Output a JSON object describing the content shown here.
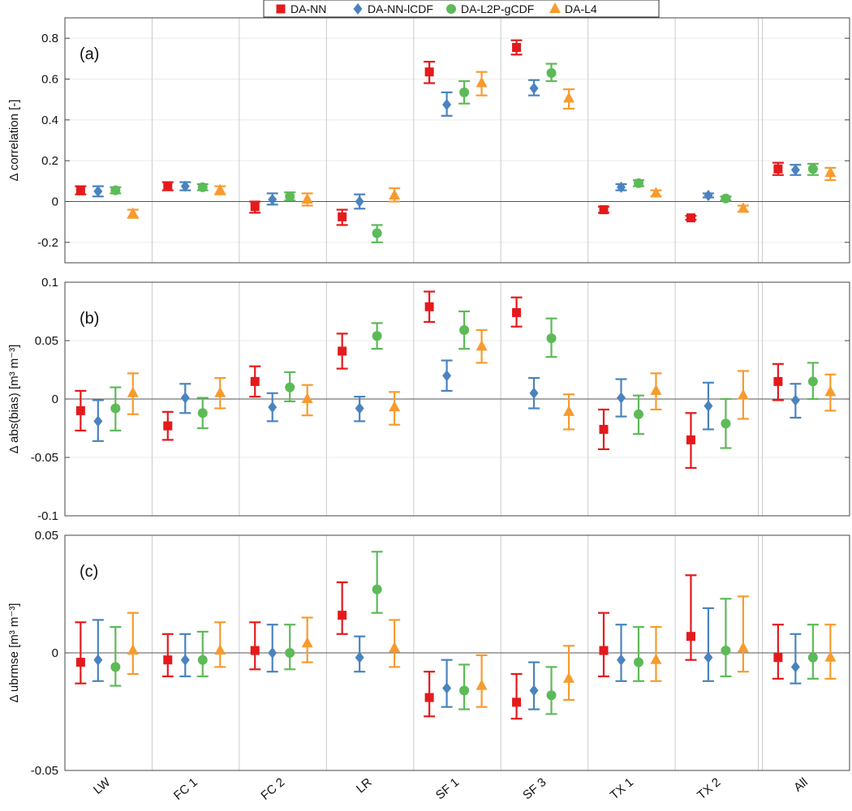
{
  "chart_data": [
    {
      "type": "errorbar",
      "panel_label": "(a)",
      "ylabel": "Δ correlation [-]",
      "ylim": [
        -0.3,
        0.9
      ],
      "yticks": [
        -0.2,
        0,
        0.2,
        0.4,
        0.6,
        0.8
      ],
      "ytick_labels": [
        "-0.2",
        "0",
        "0.2",
        "0.4",
        "0.6",
        "0.8"
      ],
      "series": [
        {
          "name": "DA-NN",
          "mean": [
            0.055,
            0.075,
            -0.025,
            -0.075,
            0.635,
            0.755,
            -0.04,
            -0.08,
            0.16
          ],
          "low": [
            0.035,
            0.055,
            -0.055,
            -0.115,
            0.58,
            0.72,
            -0.055,
            -0.09,
            0.13
          ],
          "high": [
            0.075,
            0.095,
            0.0,
            -0.04,
            0.685,
            0.79,
            -0.025,
            -0.07,
            0.19
          ]
        },
        {
          "name": "DA-NN-lCDF",
          "mean": [
            0.05,
            0.075,
            0.01,
            0.0,
            0.475,
            0.555,
            0.07,
            0.03,
            0.155
          ],
          "low": [
            0.025,
            0.055,
            -0.015,
            -0.035,
            0.42,
            0.52,
            0.055,
            0.02,
            0.13
          ],
          "high": [
            0.075,
            0.095,
            0.04,
            0.035,
            0.535,
            0.595,
            0.085,
            0.04,
            0.18
          ]
        },
        {
          "name": "DA-L2P-gCDF",
          "mean": [
            0.055,
            0.07,
            0.025,
            -0.155,
            0.535,
            0.63,
            0.09,
            0.015,
            0.16
          ],
          "low": [
            0.04,
            0.055,
            0.005,
            -0.2,
            0.48,
            0.59,
            0.075,
            0.005,
            0.13
          ],
          "high": [
            0.07,
            0.085,
            0.045,
            -0.115,
            0.59,
            0.675,
            0.105,
            0.025,
            0.185
          ]
        },
        {
          "name": "DA-L4",
          "mean": [
            -0.06,
            0.055,
            0.01,
            0.03,
            0.58,
            0.505,
            0.04,
            -0.035,
            0.14
          ],
          "low": [
            -0.08,
            0.035,
            -0.02,
            0.0,
            0.52,
            0.455,
            0.025,
            -0.05,
            0.105
          ],
          "high": [
            -0.04,
            0.075,
            0.04,
            0.065,
            0.635,
            0.55,
            0.055,
            -0.02,
            0.165
          ]
        }
      ]
    },
    {
      "type": "errorbar",
      "panel_label": "(b)",
      "ylabel": "Δ abs(bias) [m³ m⁻³]",
      "ylim": [
        -0.1,
        0.1
      ],
      "yticks": [
        -0.1,
        -0.05,
        0,
        0.05,
        0.1
      ],
      "ytick_labels": [
        "-0.1",
        "-0.05",
        "0",
        "0.05",
        "0.1"
      ],
      "series": [
        {
          "name": "DA-NN",
          "mean": [
            -0.01,
            -0.023,
            0.015,
            0.041,
            0.079,
            0.074,
            -0.026,
            -0.035,
            0.015
          ],
          "low": [
            -0.027,
            -0.035,
            0.002,
            0.026,
            0.066,
            0.062,
            -0.043,
            -0.059,
            -0.001
          ],
          "high": [
            0.007,
            -0.011,
            0.028,
            0.056,
            0.092,
            0.087,
            -0.009,
            -0.012,
            0.03
          ]
        },
        {
          "name": "DA-NN-lCDF",
          "mean": [
            -0.019,
            0.001,
            -0.007,
            -0.008,
            0.02,
            0.005,
            0.001,
            -0.006,
            -0.001
          ],
          "low": [
            -0.036,
            -0.012,
            -0.019,
            -0.019,
            0.007,
            -0.008,
            -0.015,
            -0.026,
            -0.016
          ],
          "high": [
            -0.001,
            0.013,
            0.005,
            0.002,
            0.033,
            0.018,
            0.017,
            0.014,
            0.013
          ]
        },
        {
          "name": "DA-L2P-gCDF",
          "mean": [
            -0.008,
            -0.012,
            0.01,
            0.054,
            0.059,
            0.052,
            -0.013,
            -0.021,
            0.015
          ],
          "low": [
            -0.027,
            -0.025,
            -0.002,
            0.043,
            0.043,
            0.036,
            -0.03,
            -0.042,
            0.0
          ],
          "high": [
            0.01,
            0.001,
            0.023,
            0.065,
            0.075,
            0.069,
            0.003,
            0.0,
            0.031
          ]
        },
        {
          "name": "DA-L4",
          "mean": [
            0.005,
            0.005,
            0.0,
            -0.007,
            0.045,
            -0.011,
            0.007,
            0.003,
            0.006
          ],
          "low": [
            -0.013,
            -0.008,
            -0.014,
            -0.022,
            0.031,
            -0.026,
            -0.009,
            -0.017,
            -0.01
          ],
          "high": [
            0.022,
            0.018,
            0.012,
            0.006,
            0.059,
            0.004,
            0.022,
            0.024,
            0.021
          ]
        }
      ]
    },
    {
      "type": "errorbar",
      "panel_label": "(c)",
      "ylabel": "Δ ubrmse [m³ m⁻³]",
      "ylim": [
        -0.05,
        0.05
      ],
      "yticks": [
        -0.05,
        0,
        0.05
      ],
      "ytick_labels": [
        "-0.05",
        "0",
        "0.05"
      ],
      "series": [
        {
          "name": "DA-NN",
          "mean": [
            -0.004,
            -0.003,
            0.001,
            0.016,
            -0.019,
            -0.021,
            0.001,
            0.007,
            -0.002
          ],
          "low": [
            -0.013,
            -0.01,
            -0.007,
            0.008,
            -0.027,
            -0.028,
            -0.01,
            -0.003,
            -0.011
          ],
          "high": [
            0.013,
            0.008,
            0.013,
            0.03,
            -0.008,
            -0.009,
            0.017,
            0.033,
            0.012
          ]
        },
        {
          "name": "DA-NN-lCDF",
          "mean": [
            -0.003,
            -0.003,
            0.0,
            -0.002,
            -0.015,
            -0.016,
            -0.003,
            -0.002,
            -0.006
          ],
          "low": [
            -0.012,
            -0.01,
            -0.008,
            -0.008,
            -0.023,
            -0.024,
            -0.012,
            -0.012,
            -0.013
          ],
          "high": [
            0.014,
            0.008,
            0.012,
            0.007,
            -0.003,
            -0.004,
            0.012,
            0.019,
            0.008
          ]
        },
        {
          "name": "DA-L2P-gCDF",
          "mean": [
            -0.006,
            -0.003,
            0.0,
            0.027,
            -0.016,
            -0.018,
            -0.004,
            0.001,
            -0.002
          ],
          "low": [
            -0.014,
            -0.01,
            -0.007,
            0.017,
            -0.024,
            -0.026,
            -0.012,
            -0.01,
            -0.011
          ],
          "high": [
            0.011,
            0.009,
            0.012,
            0.043,
            -0.005,
            -0.006,
            0.011,
            0.023,
            0.012
          ]
        },
        {
          "name": "DA-L4",
          "mean": [
            0.001,
            0.001,
            0.004,
            0.002,
            -0.014,
            -0.011,
            -0.003,
            0.002,
            -0.002
          ],
          "low": [
            -0.009,
            -0.006,
            -0.004,
            -0.006,
            -0.023,
            -0.02,
            -0.012,
            -0.008,
            -0.011
          ],
          "high": [
            0.017,
            0.013,
            0.015,
            0.014,
            -0.001,
            0.003,
            0.011,
            0.024,
            0.012
          ]
        }
      ]
    }
  ],
  "categories": [
    "LW",
    "FC 1",
    "FC 2",
    "LR",
    "SF 1",
    "SF 3",
    "TX 1",
    "TX 2",
    "All"
  ],
  "legend": {
    "placement": "top-center",
    "entries": [
      {
        "name": "DA-NN",
        "color": "#e41a1c",
        "marker": "square"
      },
      {
        "name": "DA-NN-lCDF",
        "color": "#377eb8",
        "marker": "diamond"
      },
      {
        "name": "DA-L2P-gCDF",
        "color": "#4daf4a",
        "marker": "circle"
      },
      {
        "name": "DA-L4",
        "color": "#ff7f00",
        "marker": "triangle"
      }
    ]
  },
  "colors": {
    "DA-NN": "#e41a1c",
    "DA-NN-lCDF": "#4a83be",
    "DA-L2P-gCDF": "#5dba58",
    "DA-L4": "#f79b2e",
    "zero_line": "#555555",
    "separator": "#cccccc",
    "grid": "#ebebeb"
  }
}
